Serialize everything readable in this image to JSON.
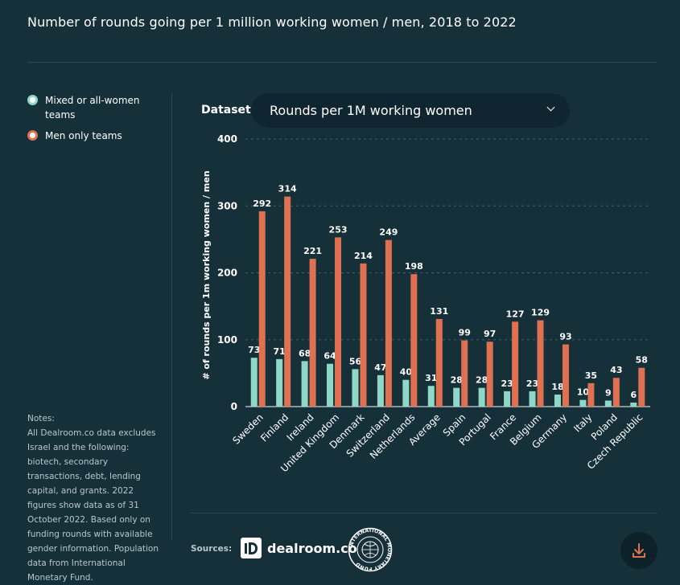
{
  "title": "Number of rounds going per 1 million working women / men, 2018 to 2022",
  "legend": {
    "items": [
      {
        "label": "Mixed or all-women teams",
        "color": "#8fd8c8"
      },
      {
        "label": "Men only teams",
        "color": "#e07052"
      }
    ]
  },
  "notes": {
    "text": "Notes:\nAll Dealroom.co data excludes Israel and the following: biotech, secondary transactions, debt, lending capital, and grants. 2022 figures show data as of 31 October 2022. Based only on funding rounds with available gender information. Population data from International Monetary Fund."
  },
  "dataset": {
    "label": "Dataset",
    "selected": "Rounds per 1M working women"
  },
  "sources": {
    "label": "Sources:",
    "dealroom": "dealroom.co",
    "imf_seal_text": "INTERNATIONAL MONETARY FUND"
  },
  "icons": {
    "dropdown": "chevron-down-icon",
    "download": "download-icon"
  },
  "chart_data": {
    "type": "bar",
    "ylabel": "# of rounds per 1m working women / men",
    "ylim": [
      0,
      400
    ],
    "yticks": [
      0,
      100,
      200,
      300,
      400
    ],
    "grid": true,
    "categories": [
      "Sweden",
      "Finland",
      "Ireland",
      "United Kingdom",
      "Denmark",
      "Switzerland",
      "Netherlands",
      "Average",
      "Spain",
      "Portugal",
      "France",
      "Belgium",
      "Germany",
      "Italy",
      "Poland",
      "Czech Republic"
    ],
    "series": [
      {
        "name": "Mixed or all-women teams",
        "color": "#8fd8c8",
        "values": [
          73,
          71,
          68,
          64,
          56,
          47,
          40,
          31,
          28,
          28,
          23,
          23,
          18,
          10,
          9,
          6
        ]
      },
      {
        "name": "Men only teams",
        "color": "#e07052",
        "values": [
          292,
          314,
          221,
          253,
          214,
          249,
          198,
          131,
          99,
          97,
          127,
          129,
          93,
          35,
          43,
          58
        ]
      }
    ]
  }
}
